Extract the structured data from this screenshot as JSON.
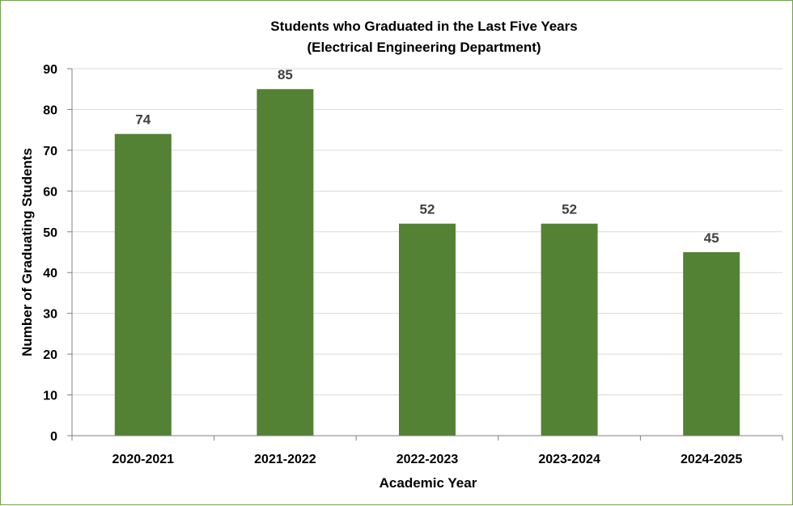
{
  "chart_data": {
    "type": "bar",
    "title": "Students who Graduated in the Last Five Years",
    "subtitle": "(Electrical Engineering Department)",
    "xlabel": "Academic Year",
    "ylabel": "Number of Graduating Students",
    "categories": [
      "2020-2021",
      "2021-2022",
      "2022-2023",
      "2023-2024",
      "2024-2025"
    ],
    "values": [
      74,
      85,
      52,
      52,
      45
    ],
    "ylim": [
      0,
      90
    ],
    "yticks": [
      0,
      10,
      20,
      30,
      40,
      50,
      60,
      70,
      80,
      90
    ],
    "grid": true,
    "legend": "none",
    "data_labels": true,
    "bar_color": "#548235",
    "grid_color": "#d9d9d9",
    "axis_color": "#808080",
    "border_color": "#6fa34a"
  }
}
